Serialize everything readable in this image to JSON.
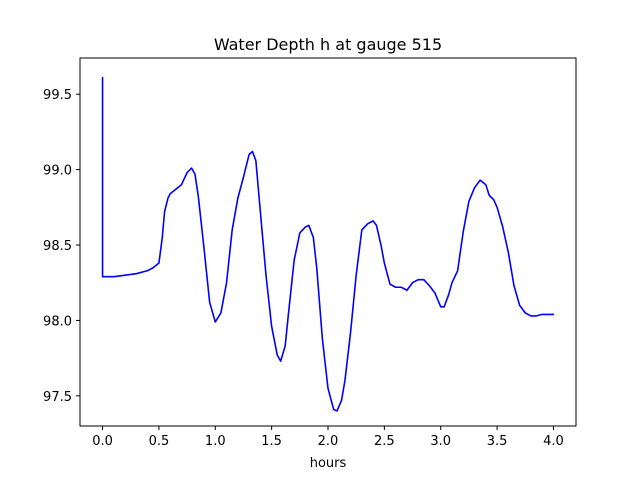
{
  "chart_data": {
    "type": "line",
    "title": "Water Depth h at gauge 515",
    "xlabel": "hours",
    "ylabel": "",
    "xlim": [
      -0.2,
      4.2
    ],
    "ylim": [
      97.3,
      99.74
    ],
    "xticks": [
      0.0,
      0.5,
      1.0,
      1.5,
      2.0,
      2.5,
      3.0,
      3.5,
      4.0
    ],
    "xtick_labels": [
      "0.0",
      "0.5",
      "1.0",
      "1.5",
      "2.0",
      "2.5",
      "3.0",
      "3.5",
      "4.0"
    ],
    "yticks": [
      97.5,
      98.0,
      98.5,
      99.0,
      99.5
    ],
    "ytick_labels": [
      "97.5",
      "98.0",
      "98.5",
      "99.0",
      "99.5"
    ],
    "grid": false,
    "legend": "none",
    "series": [
      {
        "color": "#0000ff",
        "x": [
          0.0,
          0.0,
          0.0,
          0.1,
          0.2,
          0.3,
          0.4,
          0.45,
          0.5,
          0.53,
          0.55,
          0.58,
          0.6,
          0.65,
          0.7,
          0.75,
          0.79,
          0.82,
          0.85,
          0.9,
          0.95,
          1.0,
          1.05,
          1.1,
          1.15,
          1.2,
          1.25,
          1.3,
          1.33,
          1.36,
          1.4,
          1.45,
          1.5,
          1.55,
          1.58,
          1.62,
          1.65,
          1.7,
          1.75,
          1.8,
          1.83,
          1.87,
          1.9,
          1.95,
          2.0,
          2.05,
          2.08,
          2.12,
          2.15,
          2.2,
          2.25,
          2.3,
          2.35,
          2.4,
          2.43,
          2.47,
          2.5,
          2.55,
          2.6,
          2.65,
          2.7,
          2.75,
          2.8,
          2.85,
          2.9,
          2.95,
          3.0,
          3.03,
          3.07,
          3.1,
          3.15,
          3.2,
          3.25,
          3.3,
          3.35,
          3.4,
          3.43,
          3.47,
          3.5,
          3.55,
          3.6,
          3.65,
          3.7,
          3.75,
          3.8,
          3.85,
          3.9,
          3.95,
          4.0
        ],
        "y": [
          99.61,
          98.29,
          98.29,
          98.29,
          98.3,
          98.31,
          98.33,
          98.35,
          98.38,
          98.55,
          98.72,
          98.81,
          98.84,
          98.87,
          98.9,
          98.98,
          99.01,
          98.97,
          98.82,
          98.48,
          98.12,
          97.99,
          98.05,
          98.25,
          98.6,
          98.81,
          98.95,
          99.1,
          99.12,
          99.06,
          98.72,
          98.3,
          97.96,
          97.77,
          97.73,
          97.83,
          98.05,
          98.4,
          98.58,
          98.62,
          98.63,
          98.55,
          98.35,
          97.88,
          97.55,
          97.41,
          97.4,
          97.47,
          97.6,
          97.92,
          98.3,
          98.6,
          98.64,
          98.66,
          98.63,
          98.5,
          98.38,
          98.24,
          98.22,
          98.22,
          98.2,
          98.25,
          98.27,
          98.27,
          98.23,
          98.18,
          98.09,
          98.09,
          98.17,
          98.25,
          98.33,
          98.59,
          98.79,
          98.88,
          98.93,
          98.9,
          98.83,
          98.8,
          98.75,
          98.62,
          98.45,
          98.23,
          98.1,
          98.05,
          98.03,
          98.03,
          98.04,
          98.04,
          98.04
        ]
      }
    ]
  }
}
